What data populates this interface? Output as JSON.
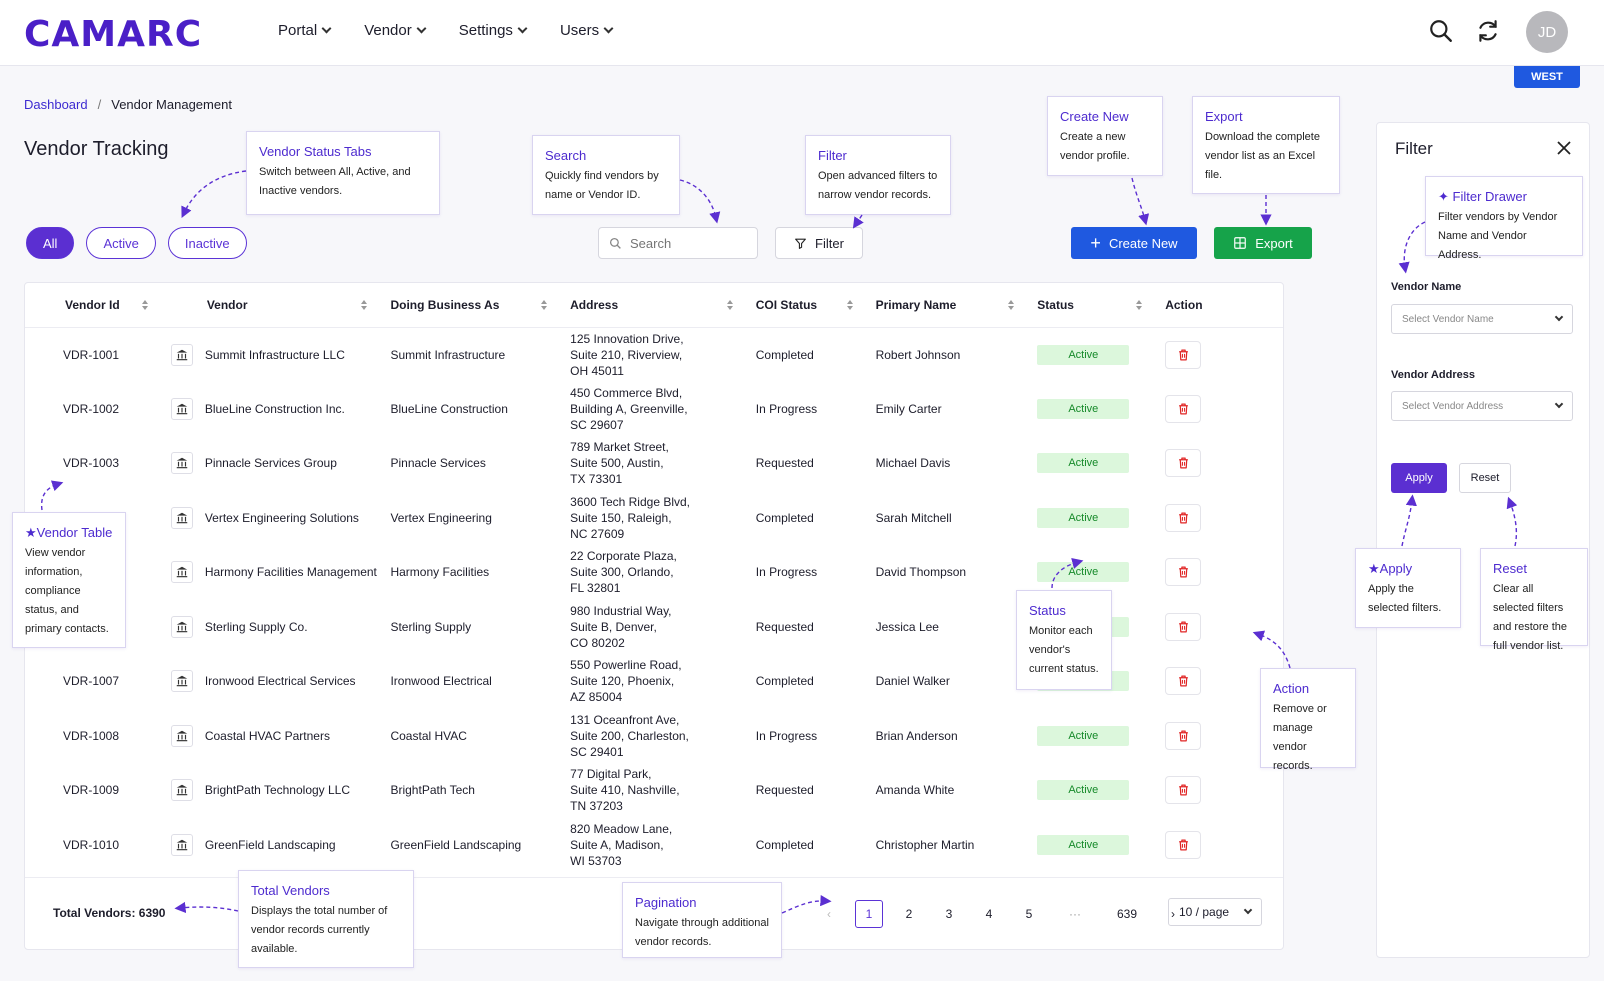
{
  "header": {
    "logo": "CAMARC",
    "nav": [
      "Portal",
      "Vendor",
      "Settings",
      "Users"
    ],
    "avatar_initials": "JD",
    "region_badge": "WEST"
  },
  "breadcrumb": {
    "root": "Dashboard",
    "sep": "/",
    "current": "Vendor Management"
  },
  "page_title": "Vendor Tracking",
  "tabs": [
    "All",
    "Active",
    "Inactive"
  ],
  "toolbar": {
    "search_placeholder": "Search",
    "filter_label": "Filter",
    "create_label": "Create New",
    "export_label": "Export"
  },
  "table": {
    "columns": [
      "Vendor Id",
      "Vendor",
      "Doing Business As",
      "Address",
      "COI Status",
      "Primary Name",
      "Status",
      "Action"
    ],
    "rows": [
      {
        "id": "VDR-1001",
        "vendor": "Summit Infrastructure LLC",
        "dba": "Summit Infrastructure",
        "addr": [
          "125 Innovation Drive,",
          "Suite 210, Riverview,",
          "OH 45011"
        ],
        "coi": "Completed",
        "primary": "Robert Johnson",
        "status": "Active"
      },
      {
        "id": "VDR-1002",
        "vendor": "BlueLine Construction Inc.",
        "dba": "BlueLine Construction",
        "addr": [
          "450 Commerce Blvd,",
          "Building A, Greenville,",
          "SC 29607"
        ],
        "coi": "In Progress",
        "primary": "Emily Carter",
        "status": "Active"
      },
      {
        "id": "VDR-1003",
        "vendor": "Pinnacle Services Group",
        "dba": "Pinnacle Services",
        "addr": [
          "789 Market Street,",
          "Suite 500, Austin,",
          "TX 73301"
        ],
        "coi": "Requested",
        "primary": "Michael Davis",
        "status": "Active"
      },
      {
        "id": "",
        "vendor": "Vertex Engineering Solutions",
        "dba": "Vertex Engineering",
        "addr": [
          "3600 Tech Ridge Blvd,",
          "Suite 150, Raleigh,",
          "NC 27609"
        ],
        "coi": "Completed",
        "primary": "Sarah Mitchell",
        "status": "Active"
      },
      {
        "id": "",
        "vendor": "Harmony Facilities Management",
        "dba": "Harmony Facilities",
        "addr": [
          "22 Corporate Plaza,",
          "Suite 300, Orlando,",
          "FL 32801"
        ],
        "coi": "In Progress",
        "primary": "David Thompson",
        "status": "Active"
      },
      {
        "id": "",
        "vendor": "Sterling Supply Co.",
        "dba": "Sterling Supply",
        "addr": [
          "980 Industrial Way,",
          "Suite B, Denver,",
          "CO 80202"
        ],
        "coi": "Requested",
        "primary": "Jessica Lee",
        "status": "Active"
      },
      {
        "id": "VDR-1007",
        "vendor": "Ironwood Electrical Services",
        "dba": "Ironwood Electrical",
        "addr": [
          "550 Powerline Road,",
          "Suite 120, Phoenix,",
          "AZ 85004"
        ],
        "coi": "Completed",
        "primary": "Daniel Walker",
        "status": "Active"
      },
      {
        "id": "VDR-1008",
        "vendor": "Coastal HVAC Partners",
        "dba": "Coastal HVAC",
        "addr": [
          "131 Oceanfront Ave,",
          "Suite 200, Charleston,",
          "SC 29401"
        ],
        "coi": "In Progress",
        "primary": "Brian Anderson",
        "status": "Active"
      },
      {
        "id": "VDR-1009",
        "vendor": "BrightPath Technology LLC",
        "dba": "BrightPath Tech",
        "addr": [
          "77 Digital Park,",
          "Suite 410, Nashville,",
          "TN 37203"
        ],
        "coi": "Requested",
        "primary": "Amanda White",
        "status": "Active"
      },
      {
        "id": "VDR-1010",
        "vendor": "GreenField Landscaping",
        "dba": "GreenField Landscaping",
        "addr": [
          "820 Meadow Lane,",
          "Suite A, Madison,",
          "WI 53703"
        ],
        "coi": "Completed",
        "primary": "Christopher Martin",
        "status": "Active"
      }
    ],
    "total_label": "Total Vendors: 6390"
  },
  "pagination": {
    "pages": [
      "1",
      "2",
      "3",
      "4",
      "5",
      "···",
      "639"
    ],
    "current": "1",
    "per_page": "10 / page"
  },
  "drawer": {
    "title": "Filter",
    "vendor_name_label": "Vendor Name",
    "vendor_name_placeholder": "Select Vendor Name",
    "vendor_address_label": "Vendor Address",
    "vendor_address_placeholder": "Select Vendor Address",
    "apply_label": "Apply",
    "reset_label": "Reset"
  },
  "annotations": {
    "status_tabs": {
      "title": "Vendor Status Tabs",
      "text": "Switch between All, Active, and Inactive vendors."
    },
    "search": {
      "title": "Search",
      "text": "Quickly find vendors by name or Vendor ID."
    },
    "filter": {
      "title": "Filter",
      "text": "Open advanced filters to narrow vendor records."
    },
    "create": {
      "title": "Create New",
      "text": "Create a new vendor profile."
    },
    "export": {
      "title": "Export",
      "text": "Download the complete vendor list as an Excel file."
    },
    "drawer": {
      "title": "✦ Filter Drawer",
      "text": "Filter vendors by Vendor Name and Vendor Address."
    },
    "table": {
      "title": "★Vendor Table",
      "text": "View vendor information, compliance status, and primary contacts."
    },
    "status": {
      "title": "Status",
      "text": "Monitor each vendor's current status."
    },
    "action": {
      "title": "Action",
      "text": "Remove or manage vendor records."
    },
    "apply": {
      "title": "★Apply",
      "text": "Apply the selected filters."
    },
    "reset": {
      "title": "Reset",
      "text": "Clear all selected filters and restore the full vendor list."
    },
    "total": {
      "title": "Total Vendors",
      "text": "Displays the total number of vendor records currently available."
    },
    "pagination": {
      "title": "Pagination",
      "text": "Navigate through additional vendor records."
    }
  },
  "colors": {
    "brand": "#4a1fc7",
    "primary_blue": "#1f59e0",
    "export_green": "#16a34a",
    "active_bg": "#dcf7dc",
    "delete_red": "#e02424"
  }
}
